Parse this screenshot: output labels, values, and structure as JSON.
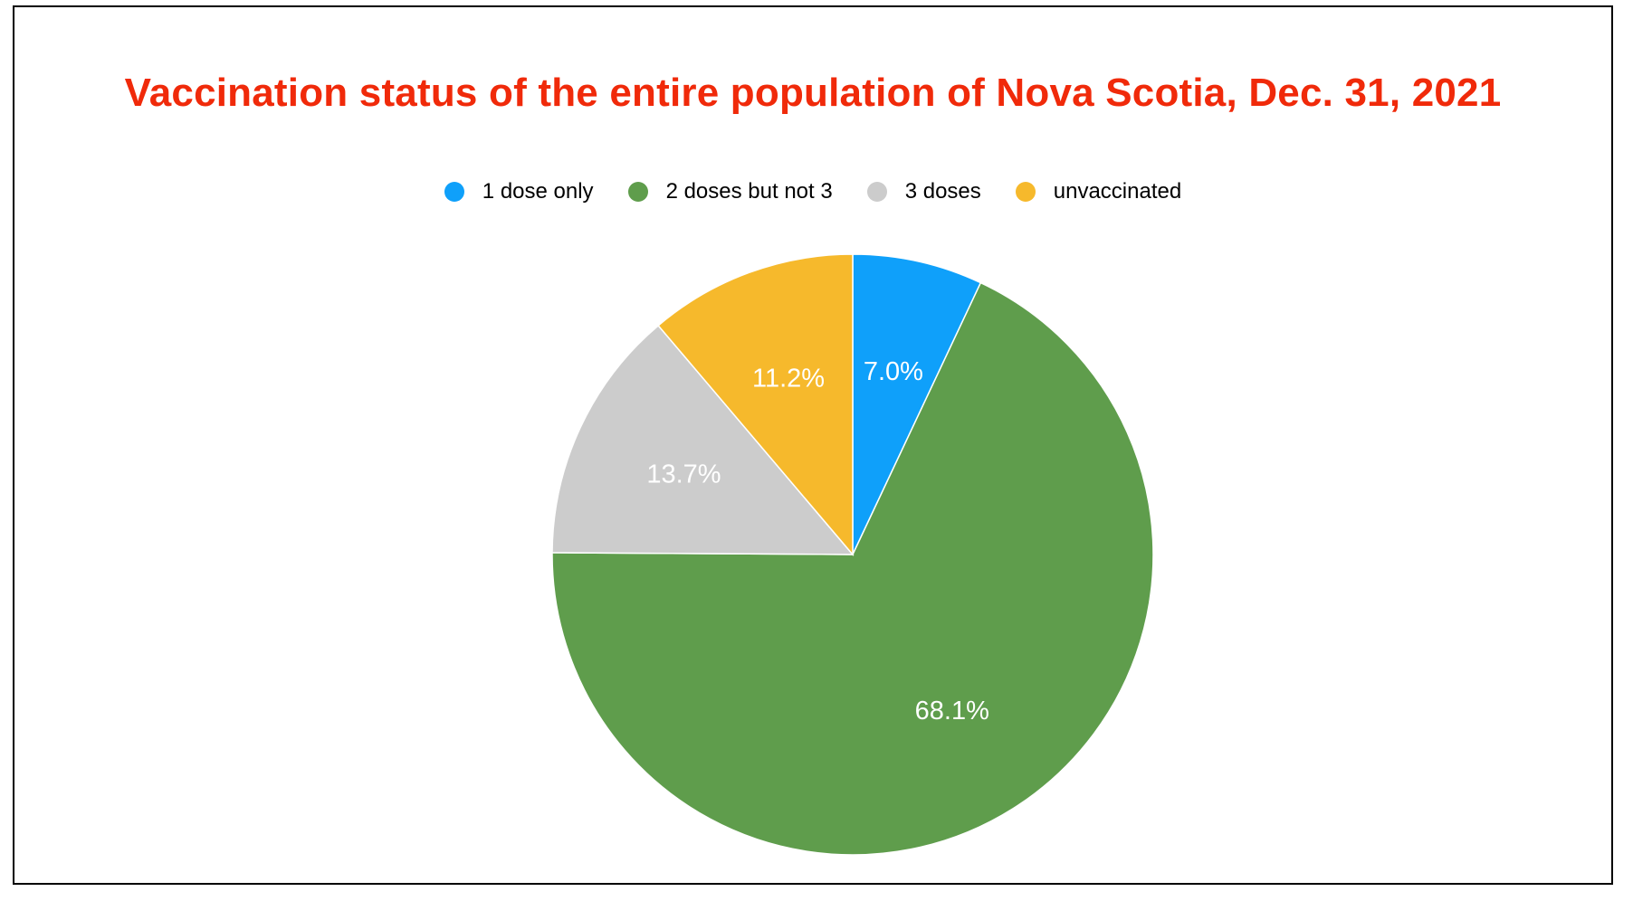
{
  "chart_data": {
    "type": "pie",
    "title": "Vaccination status of the entire population of Nova Scotia, Dec. 31, 2021",
    "title_color": "#f02a0a",
    "legend_position": "top-center",
    "slices": [
      {
        "name": "1 dose only",
        "value": 7.0,
        "label": "7.0%",
        "color": "#0fa0fa"
      },
      {
        "name": "2 doses but not 3",
        "value": 68.1,
        "label": "68.1%",
        "color": "#5f9d4c"
      },
      {
        "name": "3 doses",
        "value": 13.7,
        "label": "13.7%",
        "color": "#cccccc"
      },
      {
        "name": "unvaccinated",
        "value": 11.2,
        "label": "11.2%",
        "color": "#f6b92c"
      }
    ]
  }
}
